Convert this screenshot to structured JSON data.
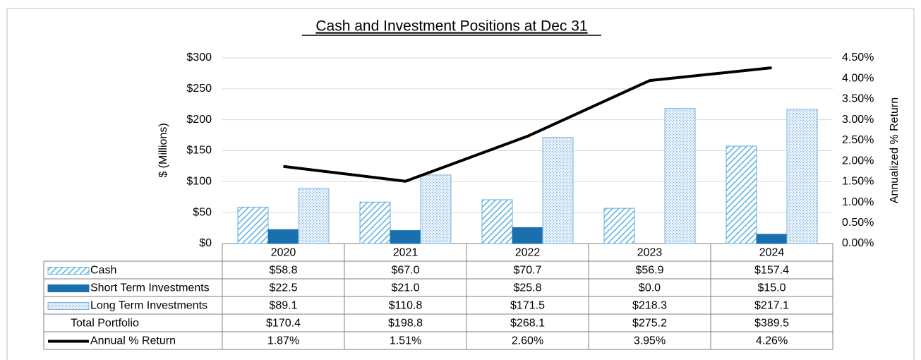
{
  "chart_data": {
    "type": "bar",
    "title": "Cash and Investment Positions at Dec 31",
    "ylabel": "$ (Millions)",
    "y2label": "Annualized % Return",
    "categories": [
      "2020",
      "2021",
      "2022",
      "2023",
      "2024"
    ],
    "ylim": [
      0,
      300
    ],
    "yticks": [
      {
        "value": 0,
        "label": "$0"
      },
      {
        "value": 50,
        "label": "$50"
      },
      {
        "value": 100,
        "label": "$100"
      },
      {
        "value": 150,
        "label": "$150"
      },
      {
        "value": 200,
        "label": "$200"
      },
      {
        "value": 250,
        "label": "$250"
      },
      {
        "value": 300,
        "label": "$300"
      }
    ],
    "y2lim": [
      0,
      4.5
    ],
    "y2ticks": [
      {
        "value": 0,
        "label": "0.00%"
      },
      {
        "value": 0.5,
        "label": "0.50%"
      },
      {
        "value": 1,
        "label": "1.00%"
      },
      {
        "value": 1.5,
        "label": "1.50%"
      },
      {
        "value": 2,
        "label": "2.00%"
      },
      {
        "value": 2.5,
        "label": "2.50%"
      },
      {
        "value": 3,
        "label": "3.00%"
      },
      {
        "value": 3.5,
        "label": "3.50%"
      },
      {
        "value": 4,
        "label": "4.00%"
      },
      {
        "value": 4.5,
        "label": "4.50%"
      }
    ],
    "grid": true,
    "series": [
      {
        "name": "Cash",
        "type": "bar",
        "pattern": "hatch",
        "color": "#5bb0e0",
        "values": [
          58.8,
          67.0,
          70.7,
          56.9,
          157.4
        ],
        "value_labels": [
          "$58.8",
          "$67.0",
          "$70.7",
          "$56.9",
          "$157.4"
        ]
      },
      {
        "name": "Short Term Investments",
        "type": "bar",
        "pattern": "solid",
        "color": "#1a6fae",
        "values": [
          22.5,
          21.0,
          25.8,
          0.0,
          15.0
        ],
        "value_labels": [
          "$22.5",
          "$21.0",
          "$25.8",
          "$0.0",
          "$15.0"
        ]
      },
      {
        "name": "Long Term Investments",
        "type": "bar",
        "pattern": "dots",
        "color": "#7db3de",
        "values": [
          89.1,
          110.8,
          171.5,
          218.3,
          217.1
        ],
        "value_labels": [
          "$89.1",
          "$110.8",
          "$171.5",
          "$218.3",
          "$217.1"
        ]
      },
      {
        "name": "Total Portfolio",
        "type": "table",
        "value_labels": [
          "$170.4",
          "$198.8",
          "$268.1",
          "$275.2",
          "$389.5"
        ]
      },
      {
        "name": "Annual % Return",
        "type": "line",
        "axis": "y2",
        "color": "#000000",
        "values": [
          1.87,
          1.51,
          2.6,
          3.95,
          4.26
        ],
        "value_labels": [
          "1.87%",
          "1.51%",
          "2.60%",
          "3.95%",
          "4.26%"
        ]
      }
    ]
  }
}
